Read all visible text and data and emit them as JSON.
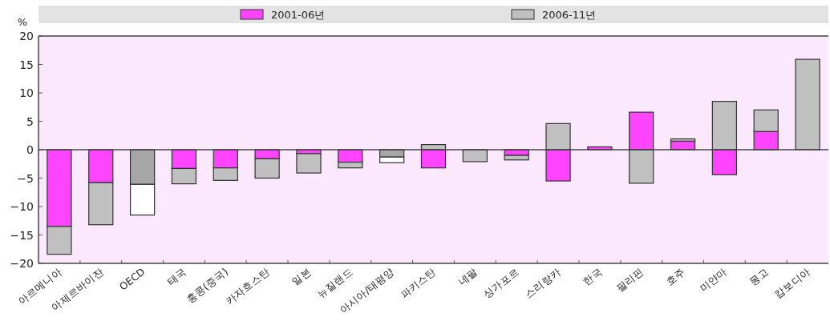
{
  "chart_data": {
    "type": "bar",
    "stacked": true,
    "ylabel": "%",
    "legend": "top",
    "categories": [
      "아르메니아",
      "아제르바이잔",
      "OECD",
      "태국",
      "홍콩(중국)",
      "카자흐스탄",
      "일본",
      "뉴질랜드",
      "아시아/태평양",
      "파키스탄",
      "네팔",
      "싱가포르",
      "스리랑카",
      "한국",
      "필리핀",
      "호주",
      "미얀마",
      "몽고",
      "캄보디아"
    ],
    "series": [
      {
        "name": "2001-06년",
        "color": "#ff44ff",
        "colors": [
          "#ff44ff",
          "#ff44ff",
          "#a6a6a6",
          "#ff44ff",
          "#ff44ff",
          "#ff44ff",
          "#ff44ff",
          "#ff44ff",
          "#a6a6a6",
          "#ff44ff",
          "#ff44ff",
          "#ff44ff",
          "#ff44ff",
          "#ff44ff",
          "#ff44ff",
          "#ff44ff",
          "#ff44ff",
          "#ff44ff",
          "#ff44ff"
        ],
        "values": [
          -13.5,
          -5.8,
          -6.1,
          -3.3,
          -3.2,
          -1.6,
          -0.7,
          -2.2,
          -1.3,
          -3.2,
          0,
          -1.0,
          -5.5,
          0.5,
          6.6,
          1.5,
          -4.4,
          3.2,
          0
        ]
      },
      {
        "name": "2006-11년",
        "color": "#c0c0c0",
        "colors": [
          "#c0c0c0",
          "#c0c0c0",
          "#ffffff",
          "#c0c0c0",
          "#c0c0c0",
          "#c0c0c0",
          "#c0c0c0",
          "#c0c0c0",
          "#ffffff",
          "#c0c0c0",
          "#c0c0c0",
          "#c0c0c0",
          "#c0c0c0",
          "#c0c0c0",
          "#c0c0c0",
          "#c0c0c0",
          "#c0c0c0",
          "#c0c0c0",
          "#c0c0c0"
        ],
        "values": [
          -4.9,
          -7.4,
          -5.4,
          -2.7,
          -2.2,
          -3.4,
          -3.4,
          -1.0,
          -1.0,
          0.9,
          -2.1,
          -0.8,
          4.6,
          0,
          -5.9,
          0.4,
          8.5,
          3.8,
          15.9
        ]
      }
    ],
    "ylim": [
      -20,
      20
    ],
    "yticks": [
      -20,
      -15,
      -10,
      -5,
      0,
      5,
      10,
      15,
      20
    ]
  }
}
